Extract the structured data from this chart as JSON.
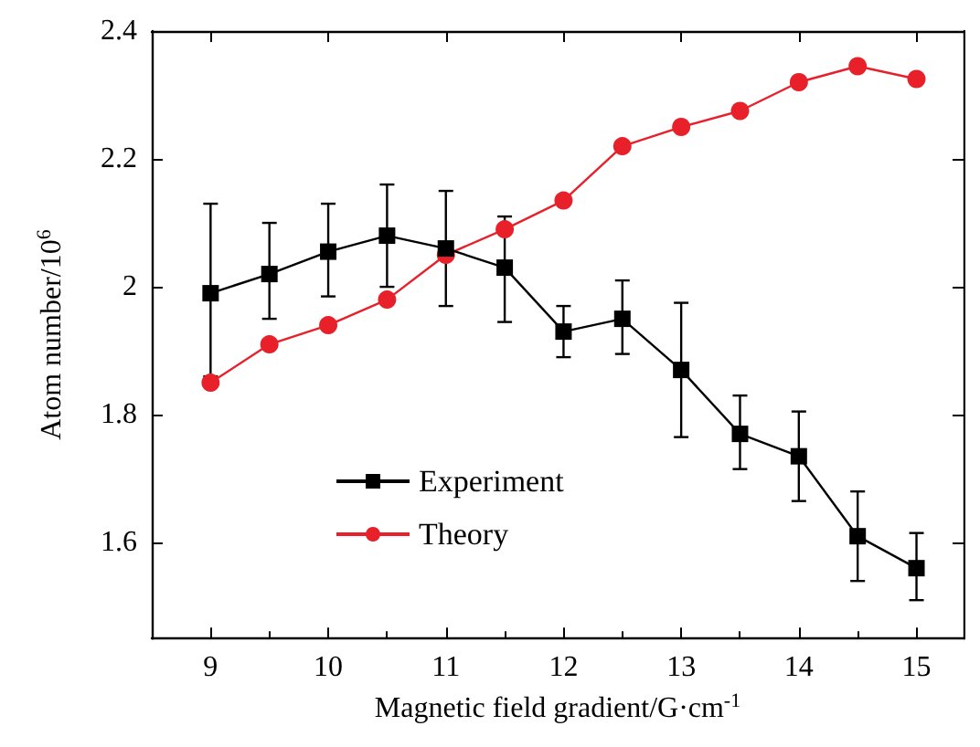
{
  "chart_data": {
    "type": "line",
    "xlabel": "Magnetic field gradient/G·cm$^{-1}$",
    "ylabel": "Atom number/10$^{6}$",
    "x": [
      9,
      9.5,
      10,
      10.5,
      11,
      11.5,
      12,
      12.5,
      13,
      13.5,
      14,
      14.5,
      15
    ],
    "series": [
      {
        "name": "Experiment",
        "color": "#000000",
        "marker": "square",
        "values": [
          1.99,
          2.02,
          2.055,
          2.08,
          2.06,
          2.03,
          1.93,
          1.95,
          1.87,
          1.77,
          1.735,
          1.61,
          1.56
        ],
        "errors": [
          [
            1.86,
            2.13
          ],
          [
            1.95,
            2.1
          ],
          [
            1.985,
            2.13
          ],
          [
            2.0,
            2.16
          ],
          [
            1.97,
            2.15
          ],
          [
            1.945,
            2.11
          ],
          [
            1.89,
            1.97
          ],
          [
            1.895,
            2.01
          ],
          [
            1.765,
            1.975
          ],
          [
            1.715,
            1.83
          ],
          [
            1.665,
            1.805
          ],
          [
            1.54,
            1.68
          ],
          [
            1.51,
            1.615
          ]
        ]
      },
      {
        "name": "Theory",
        "color": "#e8202a",
        "marker": "circle",
        "values": [
          1.85,
          1.91,
          1.94,
          1.98,
          2.05,
          2.09,
          2.135,
          2.22,
          2.25,
          2.275,
          2.32,
          2.345,
          2.325
        ]
      }
    ],
    "xlim": [
      8.5,
      15.4
    ],
    "xticks": [
      9,
      10,
      11,
      12,
      13,
      14,
      15
    ],
    "ylim": [
      1.45,
      2.4
    ],
    "yticks": [
      1.6,
      1.8,
      2.0,
      2.2,
      2.4
    ],
    "grid": false,
    "legend": "bottom left",
    "line_style": "solid"
  }
}
